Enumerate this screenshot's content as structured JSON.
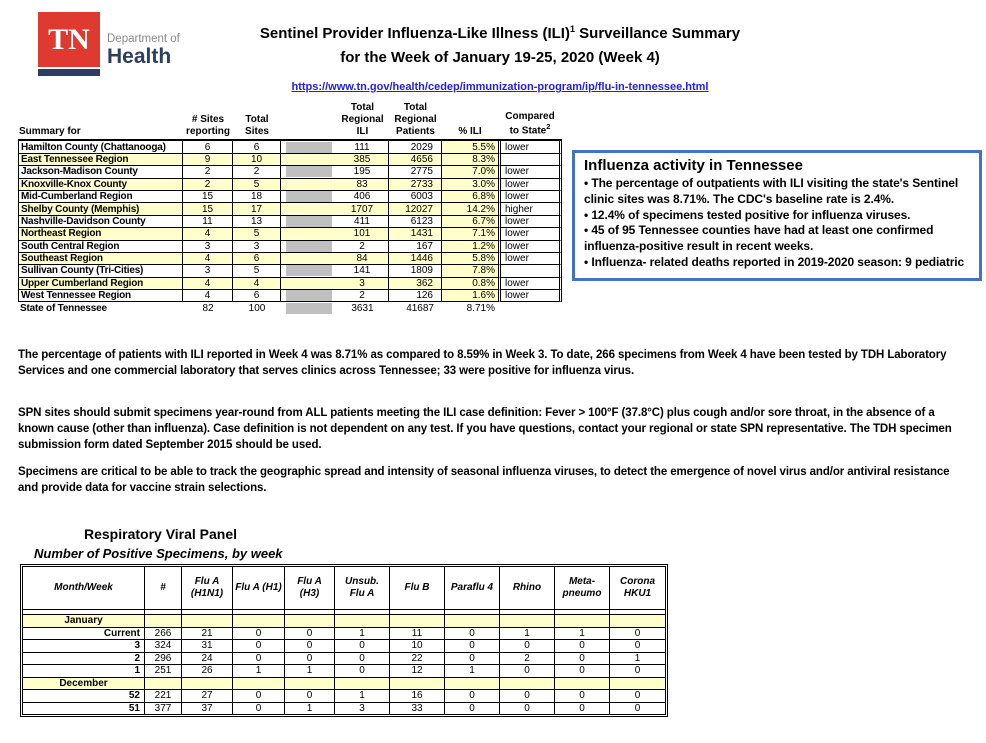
{
  "header": {
    "logo": {
      "tn": "TN",
      "dept": "Department of",
      "health": "Health"
    },
    "title_part1": "Sentinel Provider Influenza-Like Illness (ILI)",
    "title_sup": "1",
    "title_part2": "Surveillance Summary",
    "title_line2": "for the Week of January 19-25, 2020 (Week 4)",
    "url": "https://www.tn.gov/health/cedep/immunization-program/ip/flu-in-tennessee.html"
  },
  "colors": {
    "logo_red": "#df3a30",
    "navy": "#2d3e63",
    "link_blue": "#2222dd",
    "box_border_blue": "#4472c4",
    "row_yellow": "#ffffcc",
    "redacted_gray": "#c0c0c0"
  },
  "ili_table": {
    "headers": {
      "summary_for": "Summary for",
      "sites_reporting": "# Sites\nreporting",
      "total_sites": "Total\nSites",
      "regional_ili": "Total\nRegional\nILI",
      "regional_patients": "Total\nRegional\nPatients",
      "pct_ili": "% ILI",
      "compared_l1": "Compared",
      "compared_l2": "to State",
      "compared_sup": "2"
    },
    "rows": [
      {
        "region": "Hamilton County (Chattanooga)",
        "sites_reporting": 6,
        "total_sites": 6,
        "regional_ili": 111,
        "regional_patients": 2029,
        "pct_ili": "5.5%",
        "compared": "lower",
        "shaded": true,
        "highlight": false
      },
      {
        "region": "East Tennessee Region",
        "sites_reporting": 9,
        "total_sites": 10,
        "regional_ili": 385,
        "regional_patients": 4656,
        "pct_ili": "8.3%",
        "compared": "",
        "shaded": false,
        "highlight": true
      },
      {
        "region": "Jackson-Madison County",
        "sites_reporting": 2,
        "total_sites": 2,
        "regional_ili": 195,
        "regional_patients": 2775,
        "pct_ili": "7.0%",
        "compared": "lower",
        "shaded": true,
        "highlight": false
      },
      {
        "region": "Knoxville-Knox County",
        "sites_reporting": 2,
        "total_sites": 5,
        "regional_ili": 83,
        "regional_patients": 2733,
        "pct_ili": "3.0%",
        "compared": "lower",
        "shaded": false,
        "highlight": true
      },
      {
        "region": "Mid-Cumberland Region",
        "sites_reporting": 15,
        "total_sites": 18,
        "regional_ili": 406,
        "regional_patients": 6003,
        "pct_ili": "6.8%",
        "compared": "lower",
        "shaded": true,
        "highlight": false
      },
      {
        "region": "Shelby County (Memphis)",
        "sites_reporting": 15,
        "total_sites": 17,
        "regional_ili": 1707,
        "regional_patients": 12027,
        "pct_ili": "14.2%",
        "compared": "higher",
        "shaded": false,
        "highlight": true
      },
      {
        "region": "Nashville-Davidson County",
        "sites_reporting": 11,
        "total_sites": 13,
        "regional_ili": 411,
        "regional_patients": 6123,
        "pct_ili": "6.7%",
        "compared": "lower",
        "shaded": true,
        "highlight": false
      },
      {
        "region": "Northeast Region",
        "sites_reporting": 4,
        "total_sites": 5,
        "regional_ili": 101,
        "regional_patients": 1431,
        "pct_ili": "7.1%",
        "compared": "lower",
        "shaded": false,
        "highlight": true
      },
      {
        "region": "South Central Region",
        "sites_reporting": 3,
        "total_sites": 3,
        "regional_ili": 2,
        "regional_patients": 167,
        "pct_ili": "1.2%",
        "compared": "lower",
        "shaded": true,
        "highlight": false
      },
      {
        "region": "Southeast Region",
        "sites_reporting": 4,
        "total_sites": 6,
        "regional_ili": 84,
        "regional_patients": 1446,
        "pct_ili": "5.8%",
        "compared": "lower",
        "shaded": false,
        "highlight": true
      },
      {
        "region": "Sullivan County (Tri-Cities)",
        "sites_reporting": 3,
        "total_sites": 5,
        "regional_ili": 141,
        "regional_patients": 1809,
        "pct_ili": "7.8%",
        "compared": "",
        "shaded": true,
        "highlight": false
      },
      {
        "region": "Upper Cumberland Region",
        "sites_reporting": 4,
        "total_sites": 4,
        "regional_ili": 3,
        "regional_patients": 362,
        "pct_ili": "0.8%",
        "compared": "lower",
        "shaded": false,
        "highlight": true
      },
      {
        "region": "West Tennessee Region",
        "sites_reporting": 4,
        "total_sites": 6,
        "regional_ili": 2,
        "regional_patients": 126,
        "pct_ili": "1.6%",
        "compared": "lower",
        "shaded": true,
        "highlight": false
      }
    ],
    "state_row": {
      "region": "State of Tennessee",
      "sites_reporting": 82,
      "total_sites": 100,
      "regional_ili": 3631,
      "regional_patients": 41687,
      "pct_ili": "8.71%",
      "compared": "",
      "shaded": true
    }
  },
  "activity_box": {
    "title": "Influenza activity in Tennessee",
    "bullets": [
      "The percentage of outpatients with ILI visiting the state's Sentinel clinic sites was 8.71%.  The CDC's baseline rate is 2.4%.",
      "12.4% of specimens tested positive for influenza viruses.",
      "45 of 95 Tennessee counties have had at least one confirmed influenza-positive result in recent weeks.",
      "Influenza- related deaths reported in 2019-2020 season: 9 pediatric"
    ]
  },
  "paragraphs": [
    "The percentage of patients with ILI reported in Week 4 was 8.71% as compared to 8.59% in Week 3. To date, 266 specimens from Week 4 have been tested by TDH Laboratory Services and one commercial laboratory that serves clinics across Tennessee; 33 were positive for influenza virus.",
    "SPN sites should submit specimens year-round from ALL patients meeting the ILI case definition: Fever > 100°F (37.8°C) plus cough and/or sore throat, in the absence of a known cause (other than influenza). Case definition is not dependent on any test.  If you have questions, contact your regional or state SPN representative.  The TDH specimen submission form dated September 2015 should be used.",
    "Specimens are critical to be able to track the geographic spread and intensity of seasonal influenza viruses, to detect the emergence of novel virus and/or antiviral resistance and provide data for vaccine strain selections."
  ],
  "rvp_table": {
    "title": "Respiratory Viral Panel",
    "subtitle": "Number of Positive Specimens, by week",
    "columns": [
      "Month/Week",
      "#",
      "Flu A\n(H1N1)",
      "Flu A (H1)",
      "Flu A (H3)",
      "Unsub.\nFlu A",
      "Flu B",
      "Paraflu 4",
      "Rhino",
      "Meta-\npneumo",
      "Corona\nHKU1"
    ],
    "rows": [
      {
        "type": "month",
        "label": "January"
      },
      {
        "type": "week",
        "label": "Current",
        "values": [
          266,
          21,
          0,
          0,
          1,
          11,
          0,
          1,
          1,
          0
        ]
      },
      {
        "type": "week",
        "label": "3",
        "values": [
          324,
          31,
          0,
          0,
          0,
          10,
          0,
          0,
          0,
          0
        ]
      },
      {
        "type": "week",
        "label": "2",
        "values": [
          296,
          24,
          0,
          0,
          0,
          22,
          0,
          2,
          0,
          1
        ]
      },
      {
        "type": "week",
        "label": "1",
        "values": [
          251,
          26,
          1,
          1,
          0,
          12,
          1,
          0,
          0,
          0
        ]
      },
      {
        "type": "month",
        "label": "December"
      },
      {
        "type": "week",
        "label": "52",
        "values": [
          221,
          27,
          0,
          0,
          1,
          16,
          0,
          0,
          0,
          0
        ]
      },
      {
        "type": "week",
        "label": "51",
        "values": [
          377,
          37,
          0,
          1,
          3,
          33,
          0,
          0,
          0,
          0
        ]
      }
    ]
  }
}
